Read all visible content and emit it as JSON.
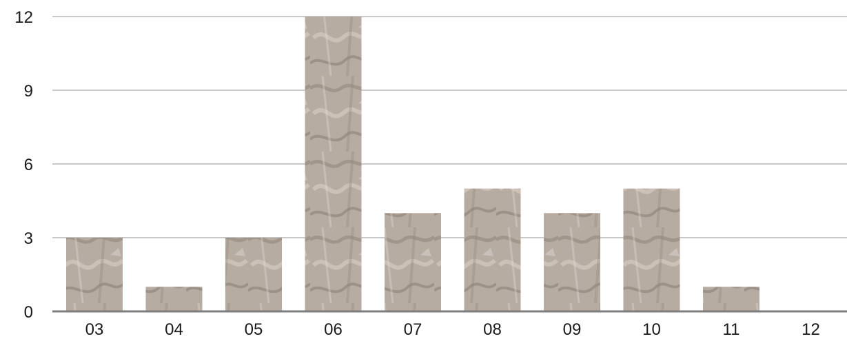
{
  "chart_data": {
    "type": "bar",
    "categories": [
      "03",
      "04",
      "05",
      "06",
      "07",
      "08",
      "09",
      "10",
      "11",
      "12"
    ],
    "values": [
      3,
      1,
      3,
      12,
      4,
      5,
      4,
      5,
      1,
      0
    ],
    "y_ticks": [
      "0",
      "3",
      "6",
      "9",
      "12"
    ],
    "ylim": [
      0,
      12
    ],
    "grid": true,
    "bar_fill": "marble texture",
    "colors": {
      "bar_base": "#b7aca1",
      "bar_dark": "#8d8276",
      "bar_light": "#d8cfc6",
      "grid": "#c8c8c8",
      "axis": "#7d7d7d",
      "text": "#1a1a1a"
    }
  }
}
